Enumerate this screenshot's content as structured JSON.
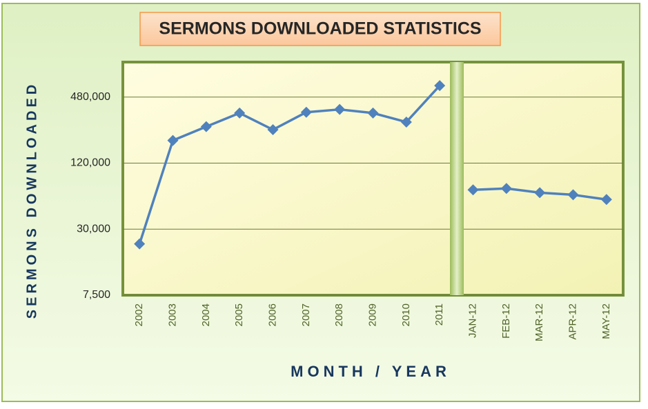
{
  "chart_data": {
    "type": "line",
    "title": "SERMONS DOWNLOADED STATISTICS",
    "x_label": "MONTH / YEAR",
    "y_label": "SERMONS DOWNLOADED",
    "categories": [
      "2002",
      "2003",
      "2004",
      "2005",
      "2006",
      "2007",
      "2008",
      "2009",
      "2010",
      "2011",
      "JAN-12",
      "FEB-12",
      "MAR-12",
      "APR-12",
      "MAY-12"
    ],
    "series": [
      {
        "color": "#4f81bd",
        "values": [
          22000,
          193000,
          258000,
          343000,
          242000,
          349000,
          370000,
          343000,
          284000,
          610000,
          null,
          null,
          null,
          null,
          null
        ]
      },
      {
        "color": "#4f81bd",
        "values": [
          null,
          null,
          null,
          null,
          null,
          null,
          null,
          null,
          null,
          null,
          68400,
          70500,
          64500,
          61700,
          55900
        ]
      }
    ],
    "log_scale": true,
    "ylim": [
      7500,
      1000000
    ],
    "yticks": [
      {
        "value": 7500,
        "label": "7,500"
      },
      {
        "value": 30000,
        "label": "30,000"
      },
      {
        "value": 120000,
        "label": "120,000"
      },
      {
        "value": 480000,
        "label": "480,000"
      }
    ],
    "grid": true
  }
}
